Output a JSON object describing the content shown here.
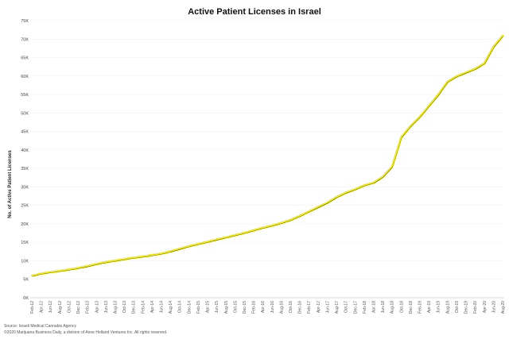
{
  "chart_data": {
    "type": "line",
    "title": "Active Patient Licenses in Israel",
    "ylabel": "No. of Active Patient Licenses",
    "xlabel": "",
    "ylim": [
      0,
      75000
    ],
    "y_ticks": [
      "0K",
      "5K",
      "10K",
      "15K",
      "20K",
      "25K",
      "30K",
      "35K",
      "40K",
      "45K",
      "50K",
      "55K",
      "60K",
      "65K",
      "70K",
      "75K"
    ],
    "grid": true,
    "categories": [
      "Feb-12",
      "Apr-12",
      "Jun-12",
      "Aug-12",
      "Oct-12",
      "Dec-12",
      "Feb-13",
      "Apr-13",
      "Jun-13",
      "Aug-13",
      "Oct-13",
      "Dec-13",
      "Feb-14",
      "Apr-14",
      "Jun-14",
      "Aug-14",
      "Oct-14",
      "Dec-14",
      "Feb-15",
      "Apr-15",
      "Jun-15",
      "Aug-15",
      "Oct-15",
      "Dec-15",
      "Feb-16",
      "Apr-16",
      "Jun-16",
      "Aug-16",
      "Oct-16",
      "Dec-16",
      "Feb-17",
      "Apr-17",
      "Jun-17",
      "Aug-17",
      "Oct-17",
      "Dec-17",
      "Feb-18",
      "Apr-18",
      "Jun-18",
      "Aug-18",
      "Oct-18",
      "Dec-18",
      "Feb-19",
      "Apr-19",
      "Jun-19",
      "Aug-19",
      "Oct-19",
      "Dec-19",
      "Feb-20",
      "Apr-20",
      "Jun-20",
      "Aug-20"
    ],
    "series": [
      {
        "color": "#f2ec00",
        "values": [
          6000,
          6600,
          7000,
          7300,
          7700,
          8100,
          8600,
          9200,
          9700,
          10100,
          10500,
          10900,
          11200,
          11600,
          12000,
          12600,
          13300,
          14000,
          14600,
          15200,
          15800,
          16400,
          17000,
          17600,
          18300,
          19000,
          19600,
          20300,
          21100,
          22200,
          23400,
          24600,
          25800,
          27300,
          28500,
          29400,
          30500,
          31200,
          32800,
          35500,
          43500,
          46500,
          49000,
          52000,
          55000,
          58500,
          60000,
          61000,
          62000,
          63500,
          68000,
          71000
        ]
      }
    ]
  },
  "source": {
    "line1": "Source: Israeli Medical Cannabis Agency",
    "line2": "©2020 Marijuana Business Daily, a division of Anne Holland Ventures Inc. All rights reserved."
  }
}
